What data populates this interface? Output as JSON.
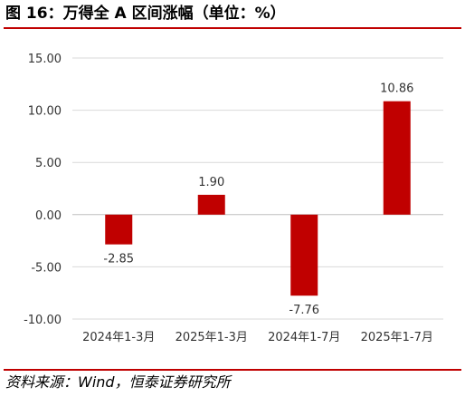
{
  "header": {
    "title": "图 16：万得全 A 区间涨幅（单位：%）"
  },
  "footer": {
    "source": "资料来源：Wind，恒泰证券研究所"
  },
  "colors": {
    "bar": "#c00000",
    "rule": "#c00000",
    "grid": "#d9d9d9",
    "axis": "#bfbfbf"
  },
  "chart_data": {
    "type": "bar",
    "title": "图 16：万得全 A 区间涨幅（单位：%）",
    "categories": [
      "2024年1-3月",
      "2025年1-3月",
      "2024年1-7月",
      "2025年1-7月"
    ],
    "values": [
      -2.85,
      1.9,
      -7.76,
      10.86
    ],
    "data_labels": [
      "-2.85",
      "1.90",
      "-7.76",
      "10.86"
    ],
    "y_ticks": [
      15,
      10,
      5,
      0,
      -5,
      -10
    ],
    "y_tick_labels": [
      "15.00",
      "10.00",
      "5.00",
      "0.00",
      "-5.00",
      "-10.00"
    ],
    "ylim": [
      -10,
      15
    ],
    "xlabel": "",
    "ylabel": "",
    "grid": true,
    "legend": "none"
  }
}
